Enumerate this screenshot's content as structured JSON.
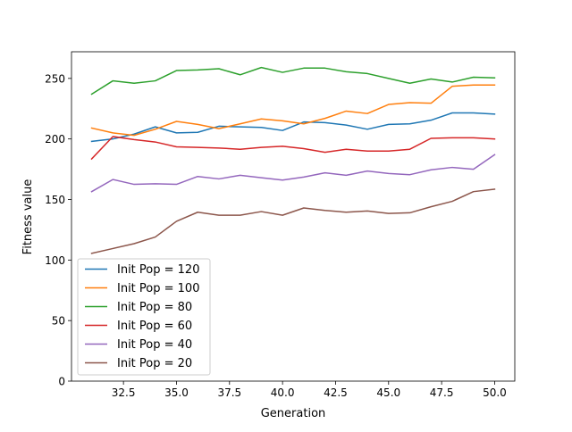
{
  "chart_data": {
    "type": "line",
    "title": "",
    "xlabel": "Generation",
    "ylabel": "Fitness value",
    "xlim": [
      30.05,
      50.95
    ],
    "ylim": [
      0,
      272
    ],
    "x_ticks": [
      32.5,
      35.0,
      37.5,
      40.0,
      42.5,
      45.0,
      47.5,
      50.0
    ],
    "x_tick_labels": [
      "32.5",
      "35.0",
      "37.5",
      "40.0",
      "42.5",
      "45.0",
      "47.5",
      "50.0"
    ],
    "y_ticks": [
      0,
      50,
      100,
      150,
      200,
      250
    ],
    "y_tick_labels": [
      "0",
      "50",
      "100",
      "150",
      "200",
      "250"
    ],
    "grid": false,
    "legend_position": "lower-left",
    "x": [
      31,
      32,
      33,
      34,
      35,
      36,
      37,
      38,
      39,
      40,
      41,
      42,
      43,
      44,
      45,
      46,
      47,
      48,
      49,
      50
    ],
    "series": [
      {
        "name": "Init Pop = 120",
        "color": "#1f77b4",
        "values": [
          198,
          200,
          204,
          210,
          205,
          205.5,
          210.5,
          210,
          209.5,
          207,
          214,
          213.5,
          211.5,
          208,
          212,
          212.5,
          215.5,
          221.5,
          221.5,
          220.5
        ]
      },
      {
        "name": "Init Pop = 100",
        "color": "#ff7f0e",
        "values": [
          209,
          205,
          203,
          208,
          214.5,
          212,
          208.5,
          212.5,
          216.5,
          215,
          212.5,
          217,
          223,
          221,
          228.5,
          230,
          229.5,
          243.5,
          244.5,
          244.5
        ]
      },
      {
        "name": "Init Pop = 80",
        "color": "#2ca02c",
        "values": [
          237,
          248,
          246,
          248,
          256.5,
          257,
          258,
          253,
          259,
          255,
          258.5,
          258.5,
          255.5,
          254,
          250,
          246,
          249.5,
          247,
          251,
          250.5
        ]
      },
      {
        "name": "Init Pop = 60",
        "color": "#d62728",
        "values": [
          183.5,
          202,
          199.5,
          197.5,
          193.5,
          193,
          192.5,
          191.5,
          193,
          194,
          192,
          189,
          191.5,
          190,
          190,
          191.5,
          200.5,
          201,
          201,
          200
        ]
      },
      {
        "name": "Init Pop = 40",
        "color": "#9467bd",
        "values": [
          156.5,
          166.5,
          162.5,
          163,
          162.5,
          169,
          167,
          170,
          168,
          166,
          168.5,
          172,
          170,
          173.5,
          171.5,
          170.5,
          174.5,
          176.5,
          175,
          187
        ]
      },
      {
        "name": "Init Pop = 20",
        "color": "#8c564b",
        "values": [
          105.5,
          109.5,
          113.5,
          119,
          132,
          139.5,
          137,
          137,
          140,
          137,
          143,
          141,
          139.5,
          140.5,
          138.5,
          139,
          144,
          148.5,
          156.5,
          158.5
        ]
      }
    ]
  }
}
